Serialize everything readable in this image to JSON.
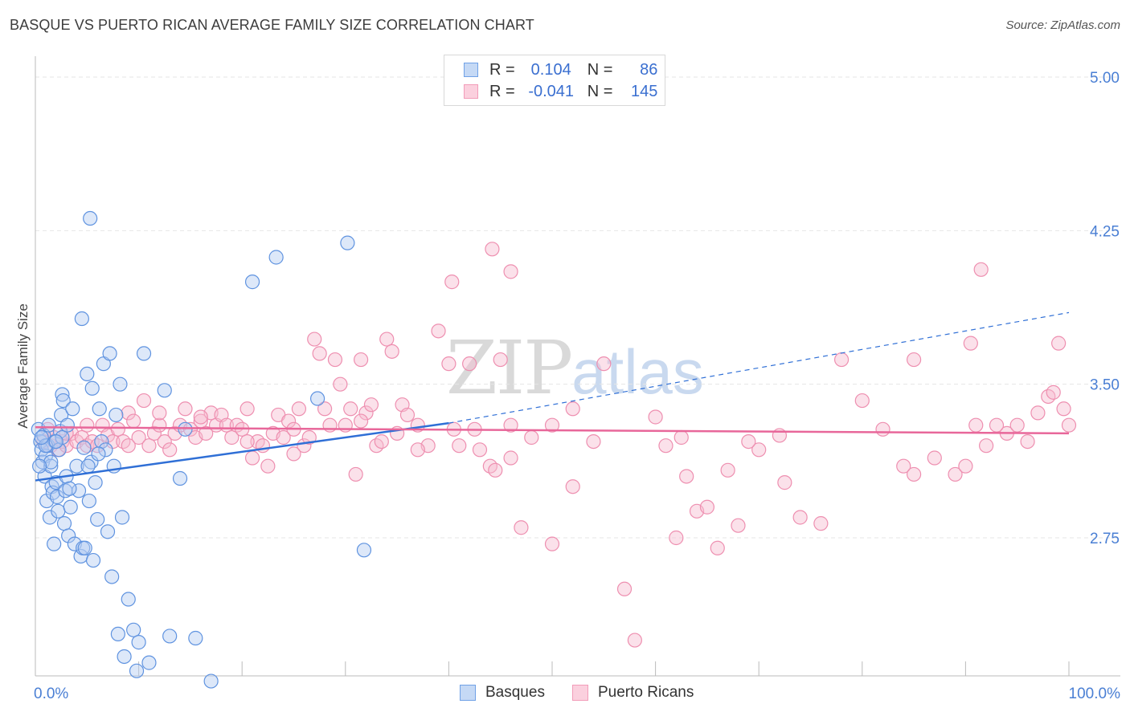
{
  "header": {
    "title": "BASQUE VS PUERTO RICAN AVERAGE FAMILY SIZE CORRELATION CHART",
    "source": "Source: ZipAtlas.com"
  },
  "watermark": {
    "zip": "ZIP",
    "atlas": "atlas"
  },
  "legend": {
    "rows": [
      {
        "r_label": "R =",
        "r_value": "0.104",
        "n_label": "N =",
        "n_value": "86",
        "color": "#6fa1e6"
      },
      {
        "r_label": "R =",
        "r_value": "-0.041",
        "n_label": "N =",
        "n_value": "145",
        "color": "#f29cb9"
      }
    ]
  },
  "chart_data": {
    "type": "scatter",
    "title": "BASQUE VS PUERTO RICAN AVERAGE FAMILY SIZE CORRELATION CHART",
    "xlabel": "",
    "ylabel": "Average Family Size",
    "xlim": [
      0,
      100
    ],
    "ylim": [
      2.0,
      5.1
    ],
    "x_tick_labels": [
      "0.0%",
      "100.0%"
    ],
    "y_ticks": [
      5.0,
      4.25,
      3.5,
      2.75
    ],
    "y_tick_labels": [
      "5.00",
      "4.25",
      "3.50",
      "2.75"
    ],
    "grid": true,
    "legend_position": "bottom",
    "colors": {
      "basques": "#6fa1e6",
      "puerto_ricans": "#f29cb9",
      "basques_line": "#2f6fd6",
      "puerto_ricans_line": "#e8679a"
    },
    "series": [
      {
        "name": "Basques",
        "trend": {
          "x": [
            0,
            40
          ],
          "y": [
            3.03,
            3.31
          ],
          "dashed_to": [
            100,
            3.85
          ]
        },
        "points": [
          [
            0.3,
            3.28
          ],
          [
            0.5,
            3.22
          ],
          [
            0.6,
            3.18
          ],
          [
            0.7,
            3.12
          ],
          [
            0.8,
            3.25
          ],
          [
            0.9,
            3.05
          ],
          [
            1.0,
            3.15
          ],
          [
            1.1,
            2.93
          ],
          [
            1.2,
            3.2
          ],
          [
            1.3,
            3.3
          ],
          [
            1.4,
            2.85
          ],
          [
            1.5,
            3.1
          ],
          [
            1.6,
            3.0
          ],
          [
            1.7,
            2.97
          ],
          [
            1.8,
            2.72
          ],
          [
            1.9,
            3.22
          ],
          [
            2.0,
            3.02
          ],
          [
            2.1,
            2.95
          ],
          [
            2.2,
            2.88
          ],
          [
            2.3,
            3.18
          ],
          [
            2.4,
            3.27
          ],
          [
            2.5,
            3.35
          ],
          [
            2.6,
            3.45
          ],
          [
            2.7,
            3.42
          ],
          [
            2.8,
            2.82
          ],
          [
            2.9,
            2.98
          ],
          [
            3.0,
            3.05
          ],
          [
            3.2,
            2.76
          ],
          [
            3.4,
            2.9
          ],
          [
            3.6,
            3.38
          ],
          [
            3.8,
            2.72
          ],
          [
            4.0,
            3.1
          ],
          [
            4.2,
            2.98
          ],
          [
            4.4,
            2.66
          ],
          [
            4.5,
            3.82
          ],
          [
            4.6,
            2.7
          ],
          [
            4.8,
            2.7
          ],
          [
            5.0,
            3.55
          ],
          [
            5.2,
            2.93
          ],
          [
            5.4,
            3.12
          ],
          [
            5.5,
            3.48
          ],
          [
            5.6,
            2.64
          ],
          [
            5.8,
            3.02
          ],
          [
            6.0,
            2.84
          ],
          [
            6.2,
            3.38
          ],
          [
            6.4,
            3.22
          ],
          [
            6.6,
            3.6
          ],
          [
            6.8,
            3.18
          ],
          [
            7.0,
            2.78
          ],
          [
            7.2,
            3.65
          ],
          [
            7.4,
            2.56
          ],
          [
            7.6,
            3.1
          ],
          [
            7.8,
            3.35
          ],
          [
            8.0,
            2.28
          ],
          [
            8.2,
            3.5
          ],
          [
            8.4,
            2.85
          ],
          [
            8.6,
            2.17
          ],
          [
            9.0,
            2.45
          ],
          [
            9.5,
            2.3
          ],
          [
            9.8,
            2.1
          ],
          [
            10.0,
            2.24
          ],
          [
            10.5,
            3.65
          ],
          [
            11.0,
            2.14
          ],
          [
            12.5,
            3.47
          ],
          [
            13.0,
            2.27
          ],
          [
            14.0,
            3.04
          ],
          [
            14.5,
            3.28
          ],
          [
            15.5,
            2.26
          ],
          [
            17.0,
            2.05
          ],
          [
            21.0,
            4.0
          ],
          [
            23.3,
            4.12
          ],
          [
            27.3,
            3.43
          ],
          [
            30.2,
            4.19
          ],
          [
            31.8,
            2.69
          ],
          [
            5.3,
            4.31
          ],
          [
            1.5,
            3.12
          ],
          [
            2.6,
            3.24
          ],
          [
            3.1,
            3.3
          ],
          [
            0.4,
            3.1
          ],
          [
            1.0,
            3.2
          ],
          [
            2.0,
            3.22
          ],
          [
            4.7,
            3.19
          ],
          [
            6.1,
            3.16
          ],
          [
            5.1,
            3.1
          ],
          [
            3.3,
            2.99
          ],
          [
            0.6,
            3.24
          ]
        ]
      },
      {
        "name": "Puerto Ricans",
        "trend": {
          "x": [
            0,
            100
          ],
          "y": [
            3.29,
            3.26
          ]
        },
        "points": [
          [
            0.8,
            3.22
          ],
          [
            1.2,
            3.28
          ],
          [
            1.5,
            3.2
          ],
          [
            1.8,
            3.24
          ],
          [
            2.2,
            3.18
          ],
          [
            2.6,
            3.22
          ],
          [
            3.0,
            3.2
          ],
          [
            3.5,
            3.26
          ],
          [
            4.0,
            3.22
          ],
          [
            4.5,
            3.24
          ],
          [
            5.0,
            3.2
          ],
          [
            5.5,
            3.22
          ],
          [
            6.0,
            3.2
          ],
          [
            6.5,
            3.3
          ],
          [
            7.0,
            3.25
          ],
          [
            7.5,
            3.22
          ],
          [
            8.0,
            3.28
          ],
          [
            8.5,
            3.22
          ],
          [
            9.0,
            3.36
          ],
          [
            9.5,
            3.32
          ],
          [
            10.0,
            3.24
          ],
          [
            10.5,
            3.42
          ],
          [
            11.0,
            3.2
          ],
          [
            11.5,
            3.26
          ],
          [
            12.0,
            3.3
          ],
          [
            12.5,
            3.22
          ],
          [
            13.0,
            3.18
          ],
          [
            13.5,
            3.26
          ],
          [
            14.0,
            3.3
          ],
          [
            14.5,
            3.38
          ],
          [
            15.0,
            3.28
          ],
          [
            15.5,
            3.24
          ],
          [
            16.0,
            3.32
          ],
          [
            16.5,
            3.26
          ],
          [
            17.0,
            3.36
          ],
          [
            17.5,
            3.3
          ],
          [
            18.0,
            3.35
          ],
          [
            18.5,
            3.3
          ],
          [
            19.0,
            3.24
          ],
          [
            19.5,
            3.3
          ],
          [
            20.0,
            3.28
          ],
          [
            20.5,
            3.38
          ],
          [
            21.0,
            3.14
          ],
          [
            21.5,
            3.22
          ],
          [
            22.0,
            3.2
          ],
          [
            22.5,
            3.1
          ],
          [
            23.0,
            3.26
          ],
          [
            23.5,
            3.35
          ],
          [
            24.0,
            3.24
          ],
          [
            24.5,
            3.32
          ],
          [
            25.0,
            3.28
          ],
          [
            25.5,
            3.38
          ],
          [
            26.0,
            3.2
          ],
          [
            26.5,
            3.24
          ],
          [
            27.0,
            3.72
          ],
          [
            27.5,
            3.65
          ],
          [
            28.0,
            3.38
          ],
          [
            28.5,
            3.3
          ],
          [
            29.0,
            3.62
          ],
          [
            29.5,
            3.5
          ],
          [
            30.0,
            3.3
          ],
          [
            30.5,
            3.38
          ],
          [
            31.0,
            3.06
          ],
          [
            31.5,
            3.62
          ],
          [
            32.0,
            3.36
          ],
          [
            32.5,
            3.4
          ],
          [
            33.0,
            3.2
          ],
          [
            33.5,
            3.22
          ],
          [
            34.0,
            3.72
          ],
          [
            34.5,
            3.66
          ],
          [
            35.0,
            3.26
          ],
          [
            35.5,
            3.4
          ],
          [
            36.0,
            3.35
          ],
          [
            37.0,
            3.3
          ],
          [
            38.0,
            3.2
          ],
          [
            39.0,
            3.76
          ],
          [
            40.0,
            3.6
          ],
          [
            40.5,
            3.28
          ],
          [
            41.0,
            3.2
          ],
          [
            42.0,
            3.6
          ],
          [
            42.5,
            3.28
          ],
          [
            44.0,
            3.1
          ],
          [
            44.5,
            3.08
          ],
          [
            45.0,
            3.62
          ],
          [
            46.0,
            3.3
          ],
          [
            47.0,
            2.8
          ],
          [
            48.0,
            3.24
          ],
          [
            50.0,
            2.72
          ],
          [
            52.0,
            3.0
          ],
          [
            54.0,
            3.22
          ],
          [
            55.0,
            3.6
          ],
          [
            57.0,
            2.5
          ],
          [
            58.0,
            2.25
          ],
          [
            60.0,
            3.34
          ],
          [
            62.0,
            2.75
          ],
          [
            62.5,
            3.24
          ],
          [
            63.0,
            3.05
          ],
          [
            64.0,
            2.88
          ],
          [
            65.0,
            2.9
          ],
          [
            67.0,
            3.08
          ],
          [
            68.0,
            2.81
          ],
          [
            70.0,
            3.18
          ],
          [
            72.0,
            3.25
          ],
          [
            74.0,
            2.85
          ],
          [
            76.0,
            2.82
          ],
          [
            78.0,
            3.62
          ],
          [
            80.0,
            3.42
          ],
          [
            82.0,
            3.28
          ],
          [
            84.0,
            3.1
          ],
          [
            85.0,
            3.06
          ],
          [
            87.0,
            3.14
          ],
          [
            89.0,
            3.06
          ],
          [
            90.0,
            3.1
          ],
          [
            92.0,
            3.2
          ],
          [
            94.0,
            3.26
          ],
          [
            96.0,
            3.22
          ],
          [
            98.0,
            3.44
          ],
          [
            99.0,
            3.7
          ],
          [
            100.0,
            3.3
          ],
          [
            40.3,
            4.0
          ],
          [
            44.2,
            4.16
          ],
          [
            46.0,
            4.05
          ],
          [
            91.5,
            4.06
          ],
          [
            90.5,
            3.7
          ],
          [
            85.0,
            3.62
          ],
          [
            91.0,
            3.3
          ],
          [
            93.0,
            3.3
          ],
          [
            95.0,
            3.3
          ],
          [
            97.0,
            3.36
          ],
          [
            98.5,
            3.46
          ],
          [
            99.5,
            3.38
          ],
          [
            52.0,
            3.38
          ],
          [
            50.0,
            3.3
          ],
          [
            46.0,
            3.14
          ],
          [
            43.0,
            3.18
          ],
          [
            37.0,
            3.18
          ],
          [
            31.5,
            3.32
          ],
          [
            25.0,
            3.16
          ],
          [
            20.5,
            3.22
          ],
          [
            16.0,
            3.34
          ],
          [
            12.0,
            3.36
          ],
          [
            9.0,
            3.2
          ],
          [
            5.0,
            3.3
          ],
          [
            3.0,
            3.26
          ],
          [
            61.0,
            3.2
          ],
          [
            66.0,
            2.7
          ],
          [
            69.0,
            3.22
          ],
          [
            72.5,
            3.02
          ]
        ]
      }
    ]
  },
  "bottom_legend": {
    "items": [
      "Basques",
      "Puerto Ricans"
    ]
  }
}
